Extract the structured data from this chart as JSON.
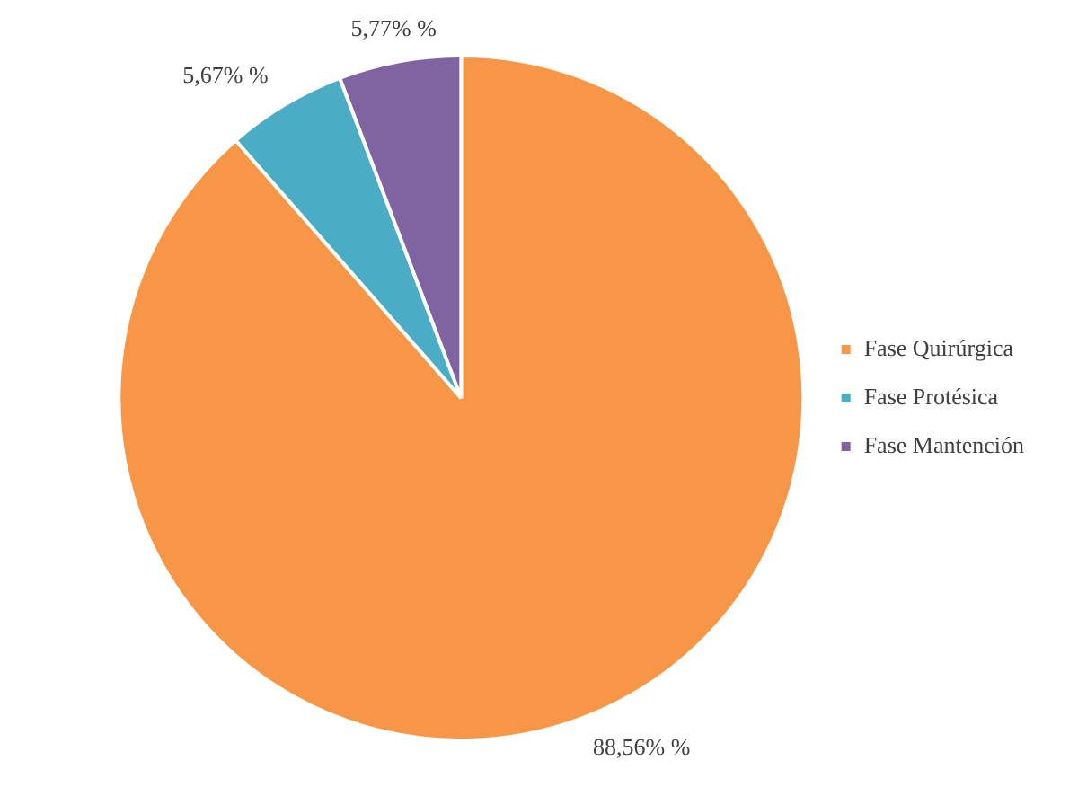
{
  "chart_data": {
    "type": "pie",
    "categories": [
      "Fase Quirúrgica",
      "Fase Protésica",
      "Fase Mantención"
    ],
    "values": [
      88.56,
      5.67,
      5.77
    ],
    "colors": [
      "#f79646",
      "#4bacc6",
      "#8064a2"
    ],
    "value_labels": [
      "88,56% %",
      "5,67% %",
      "5,77% %"
    ],
    "legend": "right"
  }
}
